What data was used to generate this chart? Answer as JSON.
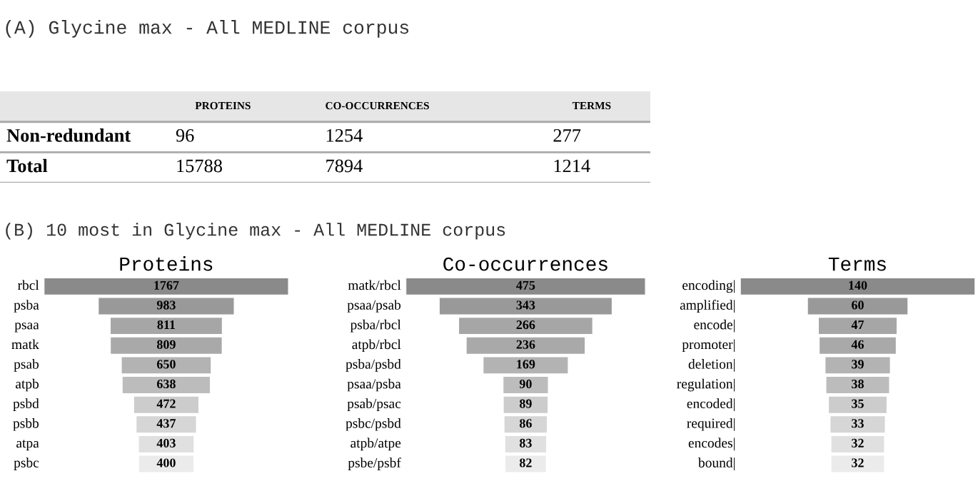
{
  "chart_data": [
    {
      "type": "heatmap",
      "title": "(A) Glycine max - All MEDLINE corpus",
      "categories": [
        "PROTEINS",
        "CO-OCCURRENCES",
        "TERMS"
      ],
      "y_categories": [
        "Non-redundant",
        "Total"
      ],
      "cells": [
        [
          96,
          1254,
          277
        ],
        [
          15788,
          7894,
          1214
        ]
      ],
      "data_labels": true
    },
    {
      "type": "other",
      "title": "Proteins",
      "annotations": [
        "(B) 10 most in Glycine max - All MEDLINE corpus"
      ],
      "categories": [
        "rbcl",
        "psba",
        "psaa",
        "matk",
        "psab",
        "atpb",
        "psbd",
        "psbb",
        "atpa",
        "psbc"
      ],
      "values": [
        1767,
        983,
        811,
        809,
        650,
        638,
        472,
        437,
        403,
        400
      ],
      "colors": [
        "#8a8a8a",
        "#999999",
        "#a6a6a6",
        "#a9a9a9",
        "#b3b3b3",
        "#bcbcbc",
        "#cccccc",
        "#d6d6d6",
        "#e0e0e0",
        "#ebebeb"
      ],
      "data_labels": true
    },
    {
      "type": "other",
      "title": "Co-occurrences",
      "categories": [
        "matk/rbcl",
        "psaa/psab",
        "psba/rbcl",
        "atpb/rbcl",
        "psba/psbd",
        "psaa/psba",
        "psab/psac",
        "psbc/psbd",
        "atpb/atpe",
        "psbe/psbf"
      ],
      "values": [
        475,
        343,
        266,
        236,
        169,
        90,
        89,
        86,
        83,
        82
      ],
      "colors": [
        "#8a8a8a",
        "#999999",
        "#a6a6a6",
        "#a9a9a9",
        "#b3b3b3",
        "#bcbcbc",
        "#cccccc",
        "#d6d6d6",
        "#e0e0e0",
        "#ebebeb"
      ],
      "data_labels": true
    },
    {
      "type": "other",
      "title": "Terms",
      "categories": [
        "encoding|",
        "amplified|",
        "encode|",
        "promoter|",
        "deletion|",
        "regulation|",
        "encoded|",
        "required|",
        "encodes|",
        "bound|"
      ],
      "values": [
        140,
        60,
        47,
        46,
        39,
        38,
        35,
        33,
        32,
        32
      ],
      "colors": [
        "#8a8a8a",
        "#999999",
        "#a6a6a6",
        "#a9a9a9",
        "#b3b3b3",
        "#bcbcbc",
        "#cccccc",
        "#d6d6d6",
        "#e0e0e0",
        "#ebebeb"
      ],
      "data_labels": true
    }
  ]
}
